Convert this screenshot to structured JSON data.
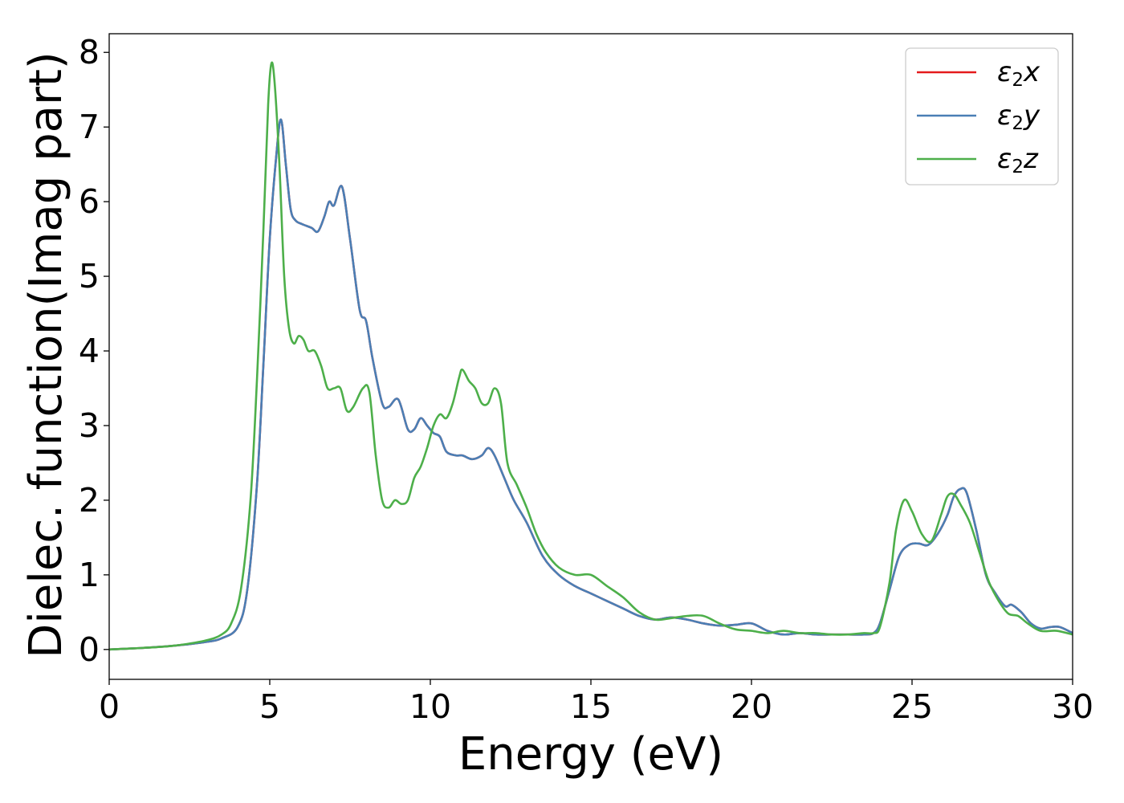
{
  "chart_data": {
    "type": "line",
    "title": "",
    "xlabel": "Energy (eV)",
    "ylabel": "Dielec. function(Imag part)",
    "xlim": [
      0,
      30
    ],
    "ylim": [
      -0.4,
      8.25
    ],
    "xticks": [
      0,
      5,
      10,
      15,
      20,
      25,
      30
    ],
    "yticks": [
      0,
      1,
      2,
      3,
      4,
      5,
      6,
      7,
      8
    ],
    "grid": false,
    "legend_position": "top-right",
    "series": [
      {
        "name": "ε₂x",
        "name_main": "ε",
        "name_sub": "2",
        "name_var": "x",
        "color": "#e41a1c",
        "x": [
          0,
          1,
          2,
          3,
          3.5,
          4,
          4.3,
          4.6,
          4.8,
          5.0,
          5.2,
          5.35,
          5.5,
          5.65,
          5.8,
          6.0,
          6.3,
          6.5,
          6.7,
          6.85,
          7.0,
          7.25,
          7.5,
          7.8,
          8.0,
          8.2,
          8.5,
          8.7,
          9.0,
          9.3,
          9.5,
          9.7,
          9.9,
          10.1,
          10.3,
          10.5,
          10.8,
          11.0,
          11.3,
          11.6,
          11.8,
          12.0,
          12.3,
          12.6,
          13.0,
          13.5,
          14.0,
          14.5,
          15.0,
          15.5,
          16.0,
          16.5,
          17.0,
          17.5,
          18.0,
          18.5,
          19.0,
          19.5,
          20.0,
          20.5,
          21.0,
          21.5,
          22.0,
          22.5,
          23.0,
          23.5,
          23.8,
          24.0,
          24.3,
          24.6,
          24.9,
          25.2,
          25.5,
          25.8,
          26.1,
          26.3,
          26.5,
          26.7,
          27.0,
          27.3,
          27.6,
          27.9,
          28.1,
          28.4,
          28.7,
          29.0,
          29.3,
          29.6,
          30.0
        ],
        "y": [
          0,
          0.02,
          0.05,
          0.1,
          0.15,
          0.3,
          0.8,
          2.2,
          3.8,
          5.5,
          6.6,
          7.1,
          6.5,
          5.9,
          5.75,
          5.7,
          5.65,
          5.6,
          5.8,
          6.0,
          5.95,
          6.2,
          5.5,
          4.55,
          4.4,
          3.9,
          3.3,
          3.25,
          3.35,
          2.95,
          2.95,
          3.1,
          3.0,
          2.9,
          2.85,
          2.65,
          2.6,
          2.6,
          2.55,
          2.6,
          2.7,
          2.6,
          2.3,
          2.0,
          1.7,
          1.25,
          1.0,
          0.85,
          0.75,
          0.65,
          0.55,
          0.45,
          0.4,
          0.43,
          0.4,
          0.35,
          0.32,
          0.33,
          0.35,
          0.25,
          0.2,
          0.22,
          0.2,
          0.2,
          0.2,
          0.2,
          0.22,
          0.35,
          0.8,
          1.25,
          1.4,
          1.42,
          1.4,
          1.55,
          1.8,
          2.05,
          2.15,
          2.1,
          1.6,
          1.0,
          0.75,
          0.58,
          0.6,
          0.5,
          0.35,
          0.28,
          0.3,
          0.3,
          0.22
        ]
      },
      {
        "name": "ε₂y",
        "name_main": "ε",
        "name_sub": "2",
        "name_var": "y",
        "color": "#4a7fb5",
        "x": [
          0,
          1,
          2,
          3,
          3.5,
          4,
          4.3,
          4.6,
          4.8,
          5.0,
          5.2,
          5.35,
          5.5,
          5.65,
          5.8,
          6.0,
          6.3,
          6.5,
          6.7,
          6.85,
          7.0,
          7.25,
          7.5,
          7.8,
          8.0,
          8.2,
          8.5,
          8.7,
          9.0,
          9.3,
          9.5,
          9.7,
          9.9,
          10.1,
          10.3,
          10.5,
          10.8,
          11.0,
          11.3,
          11.6,
          11.8,
          12.0,
          12.3,
          12.6,
          13.0,
          13.5,
          14.0,
          14.5,
          15.0,
          15.5,
          16.0,
          16.5,
          17.0,
          17.5,
          18.0,
          18.5,
          19.0,
          19.5,
          20.0,
          20.5,
          21.0,
          21.5,
          22.0,
          22.5,
          23.0,
          23.5,
          23.8,
          24.0,
          24.3,
          24.6,
          24.9,
          25.2,
          25.5,
          25.8,
          26.1,
          26.3,
          26.5,
          26.7,
          27.0,
          27.3,
          27.6,
          27.9,
          28.1,
          28.4,
          28.7,
          29.0,
          29.3,
          29.6,
          30.0
        ],
        "y": [
          0,
          0.02,
          0.05,
          0.1,
          0.15,
          0.3,
          0.8,
          2.2,
          3.8,
          5.5,
          6.6,
          7.1,
          6.5,
          5.9,
          5.75,
          5.7,
          5.65,
          5.6,
          5.8,
          6.0,
          5.95,
          6.2,
          5.5,
          4.55,
          4.4,
          3.9,
          3.3,
          3.25,
          3.35,
          2.95,
          2.95,
          3.1,
          3.0,
          2.9,
          2.85,
          2.65,
          2.6,
          2.6,
          2.55,
          2.6,
          2.7,
          2.6,
          2.3,
          2.0,
          1.7,
          1.25,
          1.0,
          0.85,
          0.75,
          0.65,
          0.55,
          0.45,
          0.4,
          0.43,
          0.4,
          0.35,
          0.32,
          0.33,
          0.35,
          0.25,
          0.2,
          0.22,
          0.2,
          0.2,
          0.2,
          0.2,
          0.22,
          0.35,
          0.8,
          1.25,
          1.4,
          1.42,
          1.4,
          1.55,
          1.8,
          2.05,
          2.15,
          2.1,
          1.6,
          1.0,
          0.75,
          0.58,
          0.6,
          0.5,
          0.35,
          0.28,
          0.3,
          0.3,
          0.22
        ]
      },
      {
        "name": "ε₂z",
        "name_main": "ε",
        "name_sub": "2",
        "name_var": "z",
        "color": "#4daf4a",
        "x": [
          0,
          1,
          2,
          3,
          3.5,
          3.8,
          4.1,
          4.4,
          4.6,
          4.8,
          4.95,
          5.05,
          5.15,
          5.3,
          5.45,
          5.6,
          5.75,
          5.9,
          6.05,
          6.2,
          6.4,
          6.6,
          6.8,
          7.0,
          7.2,
          7.4,
          7.6,
          7.9,
          8.1,
          8.3,
          8.5,
          8.7,
          8.9,
          9.1,
          9.3,
          9.5,
          9.7,
          9.9,
          10.1,
          10.3,
          10.5,
          10.7,
          10.9,
          11.0,
          11.2,
          11.4,
          11.6,
          11.8,
          12.0,
          12.2,
          12.4,
          12.7,
          13.0,
          13.3,
          13.6,
          14.0,
          14.5,
          15.0,
          15.5,
          16.0,
          16.5,
          17.0,
          17.5,
          18.0,
          18.5,
          19.0,
          19.5,
          20.0,
          20.5,
          21.0,
          21.5,
          22.0,
          22.5,
          23.0,
          23.5,
          23.8,
          24.0,
          24.3,
          24.5,
          24.75,
          25.0,
          25.3,
          25.6,
          25.9,
          26.1,
          26.3,
          26.5,
          26.8,
          27.1,
          27.4,
          27.7,
          28.0,
          28.3,
          28.6,
          29.0,
          29.5,
          30.0
        ],
        "y": [
          0,
          0.02,
          0.05,
          0.12,
          0.2,
          0.35,
          0.8,
          2.0,
          3.6,
          5.6,
          7.3,
          7.85,
          7.6,
          6.5,
          5.0,
          4.3,
          4.1,
          4.2,
          4.15,
          4.0,
          4.0,
          3.8,
          3.5,
          3.5,
          3.5,
          3.2,
          3.25,
          3.5,
          3.45,
          2.6,
          2.0,
          1.9,
          2.0,
          1.95,
          2.0,
          2.3,
          2.45,
          2.7,
          3.0,
          3.15,
          3.1,
          3.3,
          3.65,
          3.75,
          3.6,
          3.5,
          3.3,
          3.3,
          3.5,
          3.3,
          2.5,
          2.2,
          1.9,
          1.55,
          1.3,
          1.1,
          1.0,
          1.0,
          0.85,
          0.7,
          0.5,
          0.4,
          0.42,
          0.45,
          0.45,
          0.35,
          0.27,
          0.25,
          0.22,
          0.25,
          0.22,
          0.22,
          0.2,
          0.2,
          0.22,
          0.22,
          0.3,
          0.9,
          1.6,
          2.0,
          1.85,
          1.55,
          1.45,
          1.8,
          2.05,
          2.08,
          1.95,
          1.7,
          1.3,
          0.9,
          0.65,
          0.48,
          0.45,
          0.35,
          0.25,
          0.25,
          0.2
        ]
      }
    ]
  }
}
